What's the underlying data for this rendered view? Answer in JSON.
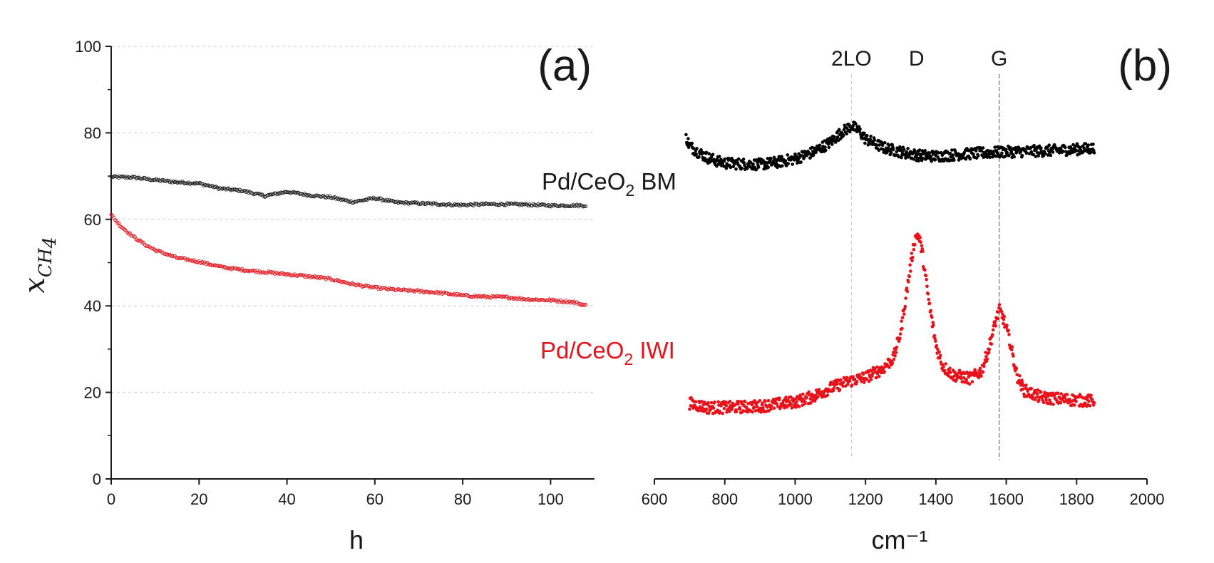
{
  "chart_data": [
    {
      "panel": "(a)",
      "type": "scatter",
      "xlabel": "h",
      "ylabel": "x_CH4",
      "ylabel_main": "x",
      "ylabel_sub": "CH",
      "ylabel_subsub": "4",
      "xlim": [
        0,
        110
      ],
      "ylim": [
        0,
        100
      ],
      "xticks": [
        "0",
        "20",
        "40",
        "60",
        "80",
        "100"
      ],
      "yticks": [
        "0",
        "20",
        "40",
        "60",
        "80",
        "100"
      ],
      "grid": "horizontal dashed",
      "series": [
        {
          "name": "Pd/CeO2 BM",
          "label_main": "Pd/CeO",
          "label_sub": "2",
          "label_tail": " BM",
          "color": "#1a1a1a",
          "x": [
            0,
            5,
            10,
            15,
            20,
            25,
            30,
            35,
            40,
            45,
            50,
            55,
            60,
            65,
            70,
            75,
            80,
            85,
            90,
            95,
            100,
            105,
            108
          ],
          "y": [
            69.8,
            69.7,
            69.1,
            68.6,
            68.3,
            67.1,
            66.6,
            65.4,
            66.4,
            65.6,
            65.1,
            64.0,
            64.9,
            63.9,
            63.7,
            63.5,
            63.3,
            63.5,
            63.5,
            63.4,
            63.2,
            63.2,
            63.2
          ]
        },
        {
          "name": "Pd/CeO2 IWI",
          "label_main": "Pd/CeO",
          "label_sub": "2",
          "label_tail": " IWI",
          "color": "#e8121b",
          "x": [
            0,
            2,
            5,
            8,
            10,
            15,
            20,
            25,
            30,
            35,
            40,
            45,
            50,
            55,
            60,
            65,
            70,
            75,
            80,
            85,
            90,
            95,
            100,
            105,
            108
          ],
          "y": [
            61.0,
            58.6,
            56.0,
            54.0,
            52.9,
            51.1,
            50.2,
            49.0,
            48.3,
            47.8,
            47.3,
            46.8,
            46.2,
            45.0,
            44.2,
            43.7,
            43.4,
            43.0,
            42.4,
            42.1,
            42.0,
            41.5,
            41.3,
            40.9,
            40.1
          ]
        }
      ]
    },
    {
      "panel": "(b)",
      "type": "scatter",
      "xlabel": "cm⁻¹",
      "xlim": [
        600,
        2000
      ],
      "xticks": [
        "600",
        "800",
        "1000",
        "1200",
        "1400",
        "1600",
        "1800",
        "2000"
      ],
      "annotations": [
        {
          "text": "2LO",
          "x": 1160
        },
        {
          "text": "D",
          "x": 1345
        },
        {
          "text": "G",
          "x": 1580
        }
      ],
      "series": [
        {
          "name": "Pd/CeO2 BM",
          "color": "#000000",
          "x": [
            690,
            700,
            720,
            750,
            780,
            800,
            850,
            900,
            950,
            1000,
            1050,
            1100,
            1130,
            1160,
            1180,
            1200,
            1250,
            1300,
            1350,
            1400,
            1500,
            1600,
            1700,
            1800,
            1850
          ],
          "y": [
            79.0,
            77.0,
            75.8,
            74.3,
            73.4,
            73.0,
            72.8,
            72.7,
            73.2,
            74.0,
            75.5,
            77.8,
            80.0,
            81.6,
            80.6,
            78.6,
            76.6,
            75.6,
            74.8,
            74.6,
            75.2,
            75.6,
            75.8,
            76.2,
            76.4
          ]
        },
        {
          "name": "Pd/CeO2 IWI",
          "color": "#e8121b",
          "x": [
            700,
            750,
            800,
            900,
            1000,
            1050,
            1100,
            1150,
            1200,
            1250,
            1280,
            1300,
            1320,
            1340,
            1350,
            1360,
            1380,
            1400,
            1420,
            1450,
            1500,
            1530,
            1550,
            1570,
            1580,
            1590,
            1610,
            1630,
            1650,
            1700,
            1750,
            1800,
            1850
          ],
          "y": [
            17.5,
            16.5,
            16.5,
            16.8,
            17.8,
            19.0,
            21.0,
            22.5,
            23.5,
            25.5,
            28.0,
            34.0,
            45.0,
            55.5,
            56.5,
            53.0,
            41.0,
            31.0,
            26.0,
            24.0,
            23.2,
            25.0,
            30.0,
            36.5,
            39.0,
            37.5,
            32.0,
            24.0,
            20.5,
            18.8,
            18.5,
            18.2,
            18.0
          ]
        }
      ]
    }
  ]
}
